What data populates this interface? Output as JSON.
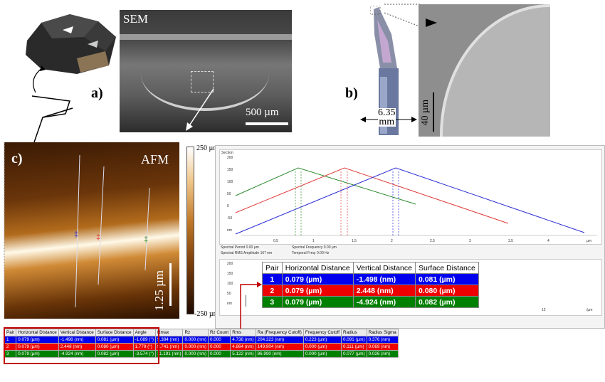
{
  "panel_a": {
    "label": "a)",
    "sem_label": "SEM",
    "scale": "500 µm"
  },
  "panel_b": {
    "label": "b)",
    "dimension_line1": "6.35",
    "dimension_line2": "mm",
    "scale": "40 µm"
  },
  "panel_c": {
    "label": "c)",
    "afm_label": "AFM",
    "scale": "1.25 µm",
    "colorbar_top": "250 µm",
    "colorbar_bottom": "-250 µm"
  },
  "section_plot": {
    "title": "Section",
    "y_ticks": [
      "200",
      "150",
      "100",
      "50",
      "0",
      "-50",
      "nm"
    ],
    "x_ticks": [
      "0.5",
      "1",
      "1.5",
      "2",
      "2.5",
      "3",
      "3.5",
      "4",
      "µm"
    ],
    "info_left_1": "Spectral Period 0.00 µm",
    "info_left_2": "Spectral RMS Amplitude 167 nm",
    "info_right_1": "Spectral Frequency 0.00 µm",
    "info_right_2": "Temporal Freq: 0.00 Hz",
    "lower_y_ticks": [
      "200",
      "150",
      "100",
      "50",
      "nm"
    ],
    "lower_x_tick": "12",
    "lower_x_unit": "/µm"
  },
  "pairs_table": {
    "headers": [
      "Pair",
      "Horizontal Distance",
      "Vertical Distance",
      "Surface Distance"
    ],
    "rows": [
      {
        "pair": "1",
        "horizontal": "0.079 (µm)",
        "vertical": "-1.498 (nm)",
        "surface": "0.081 (µm)",
        "color": "#0000ee"
      },
      {
        "pair": "2",
        "horizontal": "0.079 (µm)",
        "vertical": "2.448 (nm)",
        "surface": "0.080 (µm)",
        "color": "#ee0000"
      },
      {
        "pair": "3",
        "horizontal": "0.079 (µm)",
        "vertical": "-4.924 (nm)",
        "surface": "0.082 (µm)",
        "color": "#008000"
      }
    ]
  },
  "bottom_table": {
    "headers": [
      "Pair",
      "Horizontal Distance",
      "Vertical Distance",
      "Surface Distance",
      "Angle",
      "Rmax",
      "Rz",
      "Rz Count",
      "Rms",
      "Ra (Frequency Cutoff)",
      "Frequency Cutoff",
      "Radius",
      "Radius Sigma"
    ],
    "rows": [
      {
        "cells": [
          "1",
          "0.079 (µm)",
          "-1.498 (nm)",
          "0.081 (µm)",
          "-1.089 (°)",
          "9.384 (nm)",
          "0.000 (nm)",
          "0.000",
          "4.738 (nm)",
          "204.323 (nm)",
          "0.223 (µm)",
          "0.091 (µm)",
          "0.376 (nm)"
        ],
        "color": "#0000ee"
      },
      {
        "cells": [
          "2",
          "0.079 (µm)",
          "2.448 (nm)",
          "0.080 (µm)",
          "1.779 (°)",
          "9.741 (nm)",
          "0.000 (nm)",
          "0.000",
          "4.864 (nm)",
          "149.904 (nm)",
          "0.000 (µm)",
          "0.111 (µm)",
          "0.069 (nm)"
        ],
        "color": "#ee0000"
      },
      {
        "cells": [
          "3",
          "0.079 (µm)",
          "-4.924 (nm)",
          "0.082 (µm)",
          "-3.574 (°)",
          "11.191 (nm)",
          "0.000 (nm)",
          "0.000",
          "5.122 (nm)",
          "86.990 (nm)",
          "0.000 (µm)",
          "0.077 (µm)",
          "0.026 (nm)"
        ],
        "color": "#008000"
      }
    ]
  },
  "colors": {
    "blue": "#2b2bd6",
    "red": "#e03a3a",
    "green": "#2e8b2e",
    "highlight": "#c00000"
  }
}
